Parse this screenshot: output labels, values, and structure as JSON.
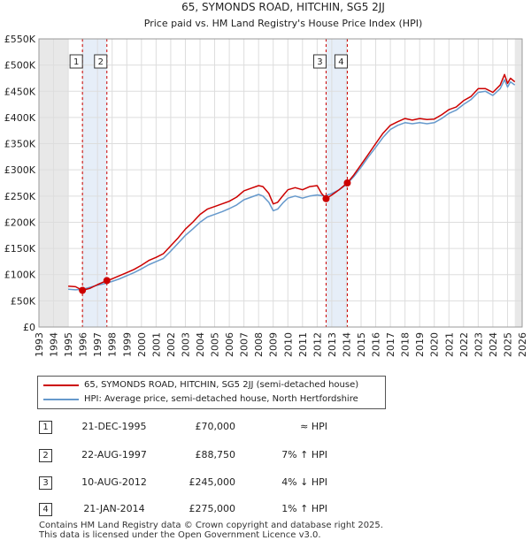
{
  "chart_data": {
    "type": "line",
    "title": "65, SYMONDS ROAD, HITCHIN, SG5 2JJ",
    "subtitle": "Price paid vs. HM Land Registry's House Price Index (HPI)",
    "xlim": [
      1993,
      2026
    ],
    "ylim": [
      0,
      550000
    ],
    "x_ticks": [
      "1993",
      "1994",
      "1995",
      "1996",
      "1997",
      "1998",
      "1999",
      "2000",
      "2001",
      "2002",
      "2003",
      "2004",
      "2005",
      "2006",
      "2007",
      "2008",
      "2009",
      "2010",
      "2011",
      "2012",
      "2013",
      "2014",
      "2015",
      "2016",
      "2017",
      "2018",
      "2019",
      "2020",
      "2021",
      "2022",
      "2023",
      "2024",
      "2025",
      "2026"
    ],
    "y_ticks": [
      "£0",
      "£50K",
      "£100K",
      "£150K",
      "£200K",
      "£250K",
      "£300K",
      "£350K",
      "£400K",
      "£450K",
      "£500K",
      "£550K"
    ],
    "y_tick_values": [
      0,
      50000,
      100000,
      150000,
      200000,
      250000,
      300000,
      350000,
      400000,
      450000,
      500000,
      550000
    ],
    "data_start": 1995.0,
    "data_end": 2025.5,
    "series": [
      {
        "name": "65, SYMONDS ROAD, HITCHIN, SG5 2JJ (semi-detached house)",
        "color": "#cc0000",
        "x": [
          1995.0,
          1995.5,
          1995.97,
          1996.5,
          1997.0,
          1997.64,
          1998.0,
          1998.5,
          1999.0,
          1999.5,
          2000.0,
          2000.5,
          2001.0,
          2001.5,
          2002.0,
          2002.5,
          2003.0,
          2003.5,
          2004.0,
          2004.5,
          2005.0,
          2005.5,
          2006.0,
          2006.5,
          2007.0,
          2007.5,
          2008.0,
          2008.3,
          2008.7,
          2009.0,
          2009.3,
          2009.7,
          2010.0,
          2010.5,
          2011.0,
          2011.5,
          2012.0,
          2012.3,
          2012.61,
          2013.0,
          2013.5,
          2014.06,
          2014.5,
          2015.0,
          2015.5,
          2016.0,
          2016.5,
          2017.0,
          2017.5,
          2018.0,
          2018.5,
          2019.0,
          2019.5,
          2020.0,
          2020.5,
          2021.0,
          2021.5,
          2022.0,
          2022.5,
          2023.0,
          2023.5,
          2024.0,
          2024.5,
          2024.8,
          2025.0,
          2025.2,
          2025.5
        ],
        "values": [
          78000,
          77000,
          70000,
          74000,
          81000,
          88750,
          92000,
          98000,
          104000,
          110000,
          118000,
          127000,
          133000,
          140000,
          155000,
          170000,
          187000,
          200000,
          215000,
          225000,
          230000,
          235000,
          240000,
          248000,
          260000,
          265000,
          270000,
          268000,
          255000,
          235000,
          238000,
          252000,
          262000,
          266000,
          262000,
          268000,
          270000,
          255000,
          245000,
          252000,
          262000,
          275000,
          290000,
          310000,
          330000,
          350000,
          370000,
          385000,
          392000,
          398000,
          395000,
          398000,
          396000,
          397000,
          405000,
          415000,
          420000,
          432000,
          440000,
          455000,
          455000,
          448000,
          462000,
          482000,
          465000,
          475000,
          468000
        ]
      },
      {
        "name": "HPI: Average price, semi-detached house, North Hertfordshire",
        "color": "#6699cc",
        "x": [
          1995.0,
          1995.5,
          1996.0,
          1996.5,
          1997.0,
          1997.5,
          1998.0,
          1998.5,
          1999.0,
          1999.5,
          2000.0,
          2000.5,
          2001.0,
          2001.5,
          2002.0,
          2002.5,
          2003.0,
          2003.5,
          2004.0,
          2004.5,
          2005.0,
          2005.5,
          2006.0,
          2006.5,
          2007.0,
          2007.5,
          2008.0,
          2008.3,
          2008.7,
          2009.0,
          2009.3,
          2009.7,
          2010.0,
          2010.5,
          2011.0,
          2011.5,
          2012.0,
          2012.5,
          2013.0,
          2013.5,
          2014.0,
          2014.5,
          2015.0,
          2015.5,
          2016.0,
          2016.5,
          2017.0,
          2017.5,
          2018.0,
          2018.5,
          2019.0,
          2019.5,
          2020.0,
          2020.5,
          2021.0,
          2021.5,
          2022.0,
          2022.5,
          2023.0,
          2023.5,
          2024.0,
          2024.5,
          2024.8,
          2025.0,
          2025.2,
          2025.5
        ],
        "values": [
          72000,
          71000,
          72000,
          76000,
          80000,
          83000,
          87000,
          92000,
          98000,
          104000,
          111000,
          119000,
          125000,
          131000,
          145000,
          160000,
          175000,
          187000,
          200000,
          210000,
          215000,
          220000,
          226000,
          233000,
          243000,
          248000,
          253000,
          250000,
          238000,
          222000,
          225000,
          238000,
          246000,
          250000,
          246000,
          250000,
          252000,
          250000,
          255000,
          262000,
          272000,
          287000,
          305000,
          325000,
          343000,
          362000,
          377000,
          385000,
          390000,
          388000,
          390000,
          388000,
          390000,
          398000,
          408000,
          414000,
          425000,
          434000,
          448000,
          450000,
          442000,
          455000,
          472000,
          458000,
          468000,
          462000
        ]
      }
    ],
    "transactions": [
      {
        "num": "1",
        "x": 1995.97,
        "value": 70000,
        "date": "21-DEC-1995",
        "price": "£70,000",
        "hpi": "≈ HPI"
      },
      {
        "num": "2",
        "x": 1997.64,
        "value": 88750,
        "date": "22-AUG-1997",
        "price": "£88,750",
        "hpi": "7% ↑ HPI"
      },
      {
        "num": "3",
        "x": 2012.61,
        "value": 245000,
        "date": "10-AUG-2012",
        "price": "£245,000",
        "hpi": "4% ↓ HPI"
      },
      {
        "num": "4",
        "x": 2014.06,
        "value": 275000,
        "date": "21-JAN-2014",
        "price": "£275,000",
        "hpi": "1% ↑ HPI"
      }
    ]
  },
  "legend": {
    "property_label": "65, SYMONDS ROAD, HITCHIN, SG5 2JJ (semi-detached house)",
    "hpi_label": "HPI: Average price, semi-detached house, North Hertfordshire",
    "property_color": "#cc0000",
    "hpi_color": "#6699cc"
  },
  "footer": {
    "line1": "Contains HM Land Registry data © Crown copyright and database right 2025.",
    "line2": "This data is licensed under the Open Government Licence v3.0."
  }
}
